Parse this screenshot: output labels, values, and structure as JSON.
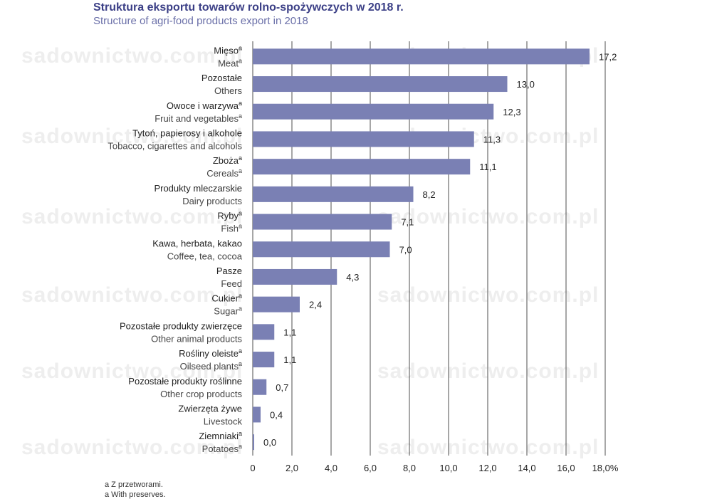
{
  "header": {
    "title": "Struktura eksportu towarów rolno-spożywczych w 2018 r.",
    "subtitle": "Structure of agri-food products export in 2018"
  },
  "watermark": {
    "text": "sadownictwo.com.pl"
  },
  "footnotes": [
    "a  Z przetworami.",
    "a  With preserves."
  ],
  "colors": {
    "bar": "#7a80b4",
    "title": "#3b3f86",
    "subtitle": "#6a6fa8",
    "grid": "#222222"
  },
  "chart_data": {
    "type": "bar",
    "orientation": "horizontal",
    "xlim": [
      0,
      18
    ],
    "x_ticks": [
      "0",
      "2,0",
      "4,0",
      "6,0",
      "8,0",
      "10,0",
      "12,0",
      "14,0",
      "16,0",
      "18,0%"
    ],
    "grid": "vertical",
    "categories": [
      {
        "pl": "Mięso",
        "en": "Meat",
        "sup_pl": true,
        "sup_en": true,
        "value": 17.2,
        "value_label": "17,2"
      },
      {
        "pl": "Pozostałe",
        "en": "Others",
        "sup_pl": false,
        "sup_en": false,
        "value": 13.0,
        "value_label": "13,0"
      },
      {
        "pl": "Owoce i warzywa",
        "en": "Fruit and vegetables",
        "sup_pl": true,
        "sup_en": true,
        "value": 12.3,
        "value_label": "12,3"
      },
      {
        "pl": "Tytoń, papierosy i alkohole",
        "en": "Tobacco, cigarettes and alcohols",
        "sup_pl": false,
        "sup_en": false,
        "value": 11.3,
        "value_label": "11,3"
      },
      {
        "pl": "Zboża",
        "en": "Cereals",
        "sup_pl": true,
        "sup_en": true,
        "value": 11.1,
        "value_label": "11,1"
      },
      {
        "pl": "Produkty mleczarskie",
        "en": "Dairy products",
        "sup_pl": false,
        "sup_en": false,
        "value": 8.2,
        "value_label": "8,2"
      },
      {
        "pl": "Ryby",
        "en": "Fish",
        "sup_pl": true,
        "sup_en": true,
        "value": 7.1,
        "value_label": "7,1"
      },
      {
        "pl": "Kawa, herbata, kakao",
        "en": "Coffee, tea, cocoa",
        "sup_pl": false,
        "sup_en": false,
        "value": 7.0,
        "value_label": "7,0"
      },
      {
        "pl": "Pasze",
        "en": "Feed",
        "sup_pl": false,
        "sup_en": false,
        "value": 4.3,
        "value_label": "4,3"
      },
      {
        "pl": "Cukier",
        "en": "Sugar",
        "sup_pl": true,
        "sup_en": true,
        "value": 2.4,
        "value_label": "2,4"
      },
      {
        "pl": "Pozostałe produkty zwierzęce",
        "en": "Other animal products",
        "sup_pl": false,
        "sup_en": false,
        "value": 1.1,
        "value_label": "1,1"
      },
      {
        "pl": "Rośliny oleiste",
        "en": "Oilseed plants",
        "sup_pl": true,
        "sup_en": true,
        "value": 1.1,
        "value_label": "1,1"
      },
      {
        "pl": "Pozostałe produkty roślinne",
        "en": "Other crop products",
        "sup_pl": false,
        "sup_en": false,
        "value": 0.7,
        "value_label": "0,7"
      },
      {
        "pl": "Zwierzęta żywe",
        "en": "Livestock",
        "sup_pl": false,
        "sup_en": false,
        "value": 0.4,
        "value_label": "0,4"
      },
      {
        "pl": "Ziemniaki",
        "en": "Potatoes",
        "sup_pl": true,
        "sup_en": true,
        "value": 0.0,
        "value_label": "0,0"
      }
    ],
    "superscript_marker": "a"
  }
}
